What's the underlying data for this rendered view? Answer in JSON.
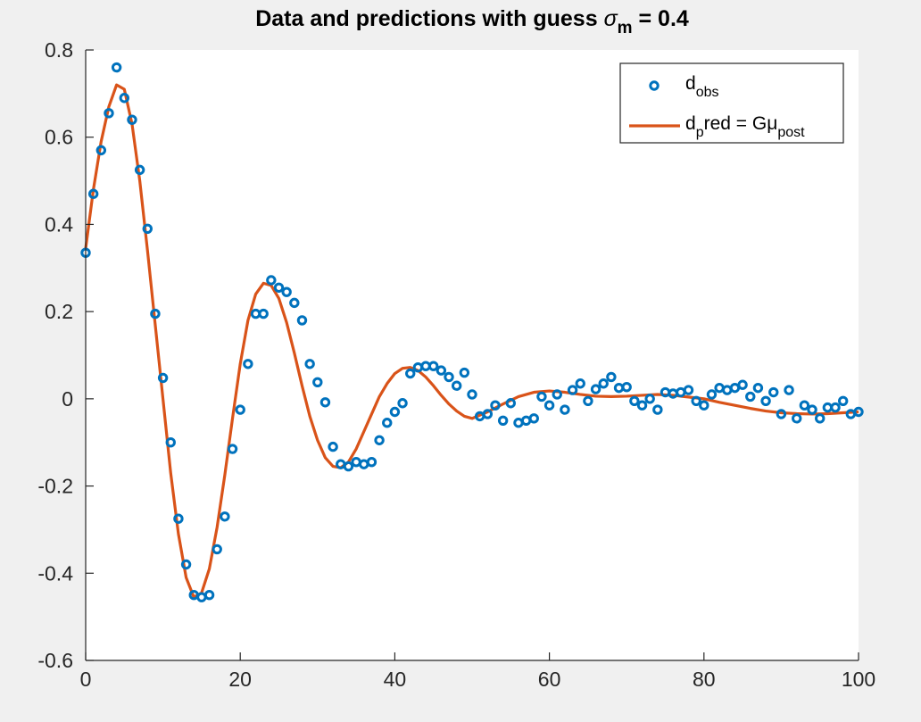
{
  "chart_data": {
    "type": "line",
    "title_parts": {
      "main": "Data and predictions with guess ",
      "symbol": "σ",
      "subscript": "m",
      "tail": " = 0.4"
    },
    "xlim": [
      0,
      100
    ],
    "ylim": [
      -0.6,
      0.8
    ],
    "x_ticks": [
      0,
      20,
      40,
      60,
      80,
      100
    ],
    "y_ticks": [
      -0.6,
      -0.4,
      -0.2,
      0,
      0.2,
      0.4,
      0.6,
      0.8
    ],
    "y_tick_labels": [
      "-0.6",
      "-0.4",
      "-0.2",
      "0",
      "0.2",
      "0.4",
      "0.6",
      "0.8"
    ],
    "grid": false,
    "legend_position": "top-right",
    "legend": [
      {
        "base": "d",
        "sub": "obs",
        "tail": "",
        "kind": "markers"
      },
      {
        "base": "d",
        "sub": "p",
        "tail": "red = Gμ",
        "tail_sub": "post",
        "kind": "line"
      }
    ],
    "colors": {
      "observed": "#0072bd",
      "predicted": "#d95319"
    },
    "series": [
      {
        "kind": "scatter",
        "x": [
          0,
          1,
          2,
          3,
          4,
          5,
          6,
          7,
          8,
          9,
          10,
          11,
          12,
          13,
          14,
          15,
          16,
          17,
          18,
          19,
          20,
          21,
          22,
          23,
          24,
          25,
          26,
          27,
          28,
          29,
          30,
          31,
          32,
          33,
          34,
          35,
          36,
          37,
          38,
          39,
          40,
          41,
          42,
          43,
          44,
          45,
          46,
          47,
          48,
          49,
          50,
          51,
          52,
          53,
          54,
          55,
          56,
          57,
          58,
          59,
          60,
          61,
          62,
          63,
          64,
          65,
          66,
          67,
          68,
          69,
          70,
          71,
          72,
          73,
          74,
          75,
          76,
          77,
          78,
          79,
          80,
          81,
          82,
          83,
          84,
          85,
          86,
          87,
          88,
          89,
          90,
          91,
          92,
          93,
          94,
          95,
          96,
          97,
          98,
          99,
          100
        ],
        "y": [
          0.335,
          0.47,
          0.57,
          0.655,
          0.76,
          0.69,
          0.64,
          0.525,
          0.39,
          0.195,
          0.048,
          -0.1,
          -0.275,
          -0.38,
          -0.45,
          -0.455,
          -0.45,
          -0.345,
          -0.27,
          -0.115,
          -0.025,
          0.08,
          0.195,
          0.195,
          0.272,
          0.255,
          0.245,
          0.22,
          0.18,
          0.08,
          0.038,
          -0.008,
          -0.11,
          -0.15,
          -0.155,
          -0.145,
          -0.15,
          -0.145,
          -0.095,
          -0.055,
          -0.03,
          -0.01,
          0.058,
          0.072,
          0.075,
          0.075,
          0.065,
          0.05,
          0.03,
          0.06,
          0.01,
          -0.04,
          -0.035,
          -0.015,
          -0.05,
          -0.01,
          -0.055,
          -0.05,
          -0.045,
          0.005,
          -0.015,
          0.01,
          -0.025,
          0.02,
          0.035,
          -0.005,
          0.022,
          0.035,
          0.05,
          0.025,
          0.027,
          -0.005,
          -0.015,
          0.0,
          -0.025,
          0.015,
          0.012,
          0.015,
          0.02,
          -0.005,
          -0.015,
          0.01,
          0.025,
          0.02,
          0.025,
          0.032,
          0.005,
          0.025,
          -0.005,
          0.015,
          -0.035,
          0.02,
          -0.045,
          -0.015,
          -0.025,
          -0.045,
          -0.02,
          -0.02,
          -0.005,
          -0.035,
          -0.03
        ]
      },
      {
        "kind": "line",
        "x": [
          0,
          1,
          2,
          3,
          4,
          5,
          6,
          7,
          8,
          9,
          10,
          11,
          12,
          13,
          14,
          15,
          16,
          17,
          18,
          19,
          20,
          21,
          22,
          23,
          24,
          25,
          26,
          27,
          28,
          29,
          30,
          31,
          32,
          33,
          34,
          35,
          36,
          37,
          38,
          39,
          40,
          41,
          42,
          43,
          44,
          45,
          46,
          47,
          48,
          49,
          50,
          52,
          54,
          56,
          58,
          60,
          62,
          64,
          66,
          68,
          70,
          72,
          74,
          76,
          78,
          80,
          82,
          84,
          86,
          88,
          90,
          92,
          94,
          96,
          98,
          100
        ],
        "y": [
          0.345,
          0.48,
          0.59,
          0.67,
          0.72,
          0.71,
          0.63,
          0.5,
          0.34,
          0.17,
          0.0,
          -0.17,
          -0.31,
          -0.41,
          -0.455,
          -0.445,
          -0.39,
          -0.295,
          -0.175,
          -0.045,
          0.08,
          0.18,
          0.24,
          0.265,
          0.26,
          0.23,
          0.175,
          0.105,
          0.03,
          -0.04,
          -0.095,
          -0.135,
          -0.155,
          -0.158,
          -0.145,
          -0.115,
          -0.075,
          -0.035,
          0.005,
          0.035,
          0.058,
          0.07,
          0.072,
          0.065,
          0.05,
          0.03,
          0.008,
          -0.012,
          -0.028,
          -0.04,
          -0.045,
          -0.03,
          -0.012,
          0.005,
          0.015,
          0.018,
          0.015,
          0.01,
          0.006,
          0.005,
          0.006,
          0.008,
          0.01,
          0.008,
          0.004,
          0.0,
          -0.008,
          -0.015,
          -0.022,
          -0.028,
          -0.032,
          -0.034,
          -0.035,
          -0.034,
          -0.032,
          -0.03
        ]
      }
    ]
  }
}
